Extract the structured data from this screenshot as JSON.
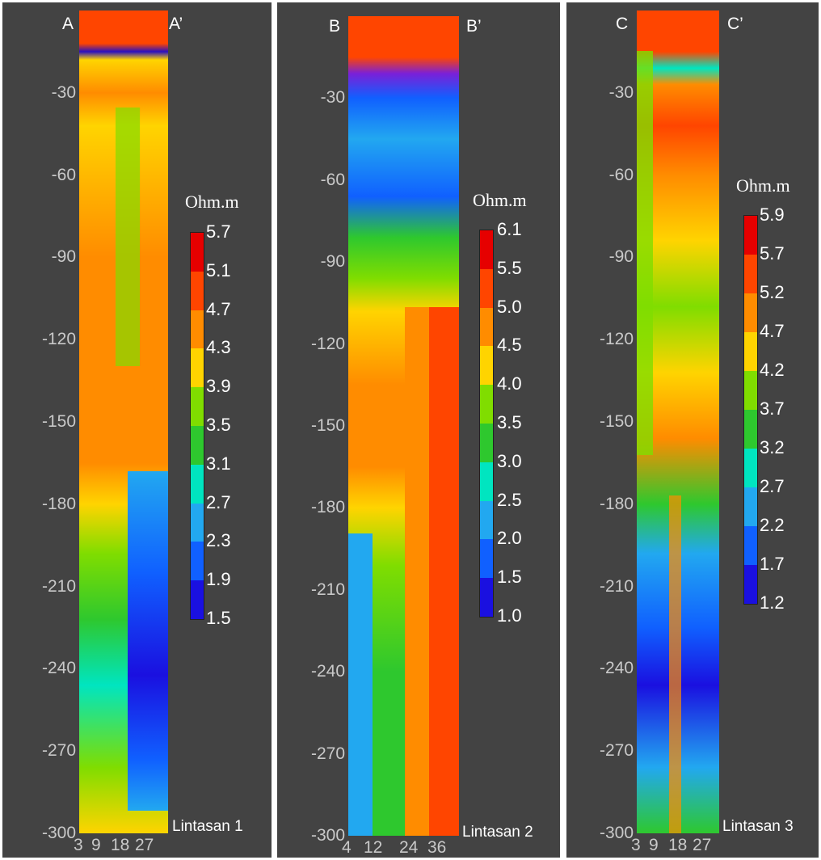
{
  "chart_data": [
    {
      "type": "heatmap",
      "section_start": "A",
      "section_end": "A’",
      "unit_label": "Ohm.m",
      "track_label": "Lintasan 1",
      "y_ticks": [
        "-30",
        "-60",
        "-90",
        "-120",
        "-150",
        "-180",
        "-210",
        "-240",
        "-270",
        "-300"
      ],
      "x_ticks": [
        "3",
        "9",
        "18",
        "27"
      ],
      "ylim": [
        -300,
        0
      ],
      "colorbar_levels": [
        "5.7",
        "5.1",
        "4.7",
        "4.3",
        "3.9",
        "3.5",
        "3.1",
        "2.7",
        "2.3",
        "1.9",
        "1.5"
      ],
      "colorbar_colors": [
        "#e60000",
        "#ff4500",
        "#ff8c00",
        "#ffd400",
        "#80dd00",
        "#2ec82e",
        "#00e5c0",
        "#22a8f0",
        "#1060ff",
        "#1a10e0",
        "#7a20d8"
      ]
    },
    {
      "type": "heatmap",
      "section_start": "B",
      "section_end": "B’",
      "unit_label": "Ohm.m",
      "track_label": "Lintasan 2",
      "y_ticks": [
        "-30",
        "-60",
        "-90",
        "-120",
        "-150",
        "-180",
        "-210",
        "-240",
        "-270",
        "-300"
      ],
      "x_ticks": [
        "4",
        "12",
        "24",
        "36"
      ],
      "ylim": [
        -300,
        0
      ],
      "colorbar_levels": [
        "6.1",
        "5.5",
        "5.0",
        "4.5",
        "4.0",
        "3.5",
        "3.0",
        "2.5",
        "2.0",
        "1.5",
        "1.0"
      ],
      "colorbar_colors": [
        "#e60000",
        "#ff4500",
        "#ff8c00",
        "#ffd400",
        "#80dd00",
        "#2ec82e",
        "#00e5c0",
        "#22a8f0",
        "#1060ff",
        "#1a10e0",
        "#7a20d8"
      ]
    },
    {
      "type": "heatmap",
      "section_start": "C",
      "section_end": "C’",
      "unit_label": "Ohm.m",
      "track_label": "Lintasan 3",
      "y_ticks": [
        "-30",
        "-60",
        "-90",
        "-120",
        "-150",
        "-180",
        "-210",
        "-240",
        "-270",
        "-300"
      ],
      "x_ticks": [
        "3",
        "9",
        "18",
        "27"
      ],
      "ylim": [
        -300,
        0
      ],
      "colorbar_levels": [
        "5.9",
        "5.7",
        "5.2",
        "4.7",
        "4.2",
        "3.7",
        "3.2",
        "2.7",
        "2.2",
        "1.7",
        "1.2"
      ],
      "colorbar_colors": [
        "#e60000",
        "#ff4500",
        "#ff8c00",
        "#ffd400",
        "#80dd00",
        "#2ec82e",
        "#00e5c0",
        "#22a8f0",
        "#1060ff",
        "#1a10e0",
        "#7a20d8"
      ]
    }
  ]
}
